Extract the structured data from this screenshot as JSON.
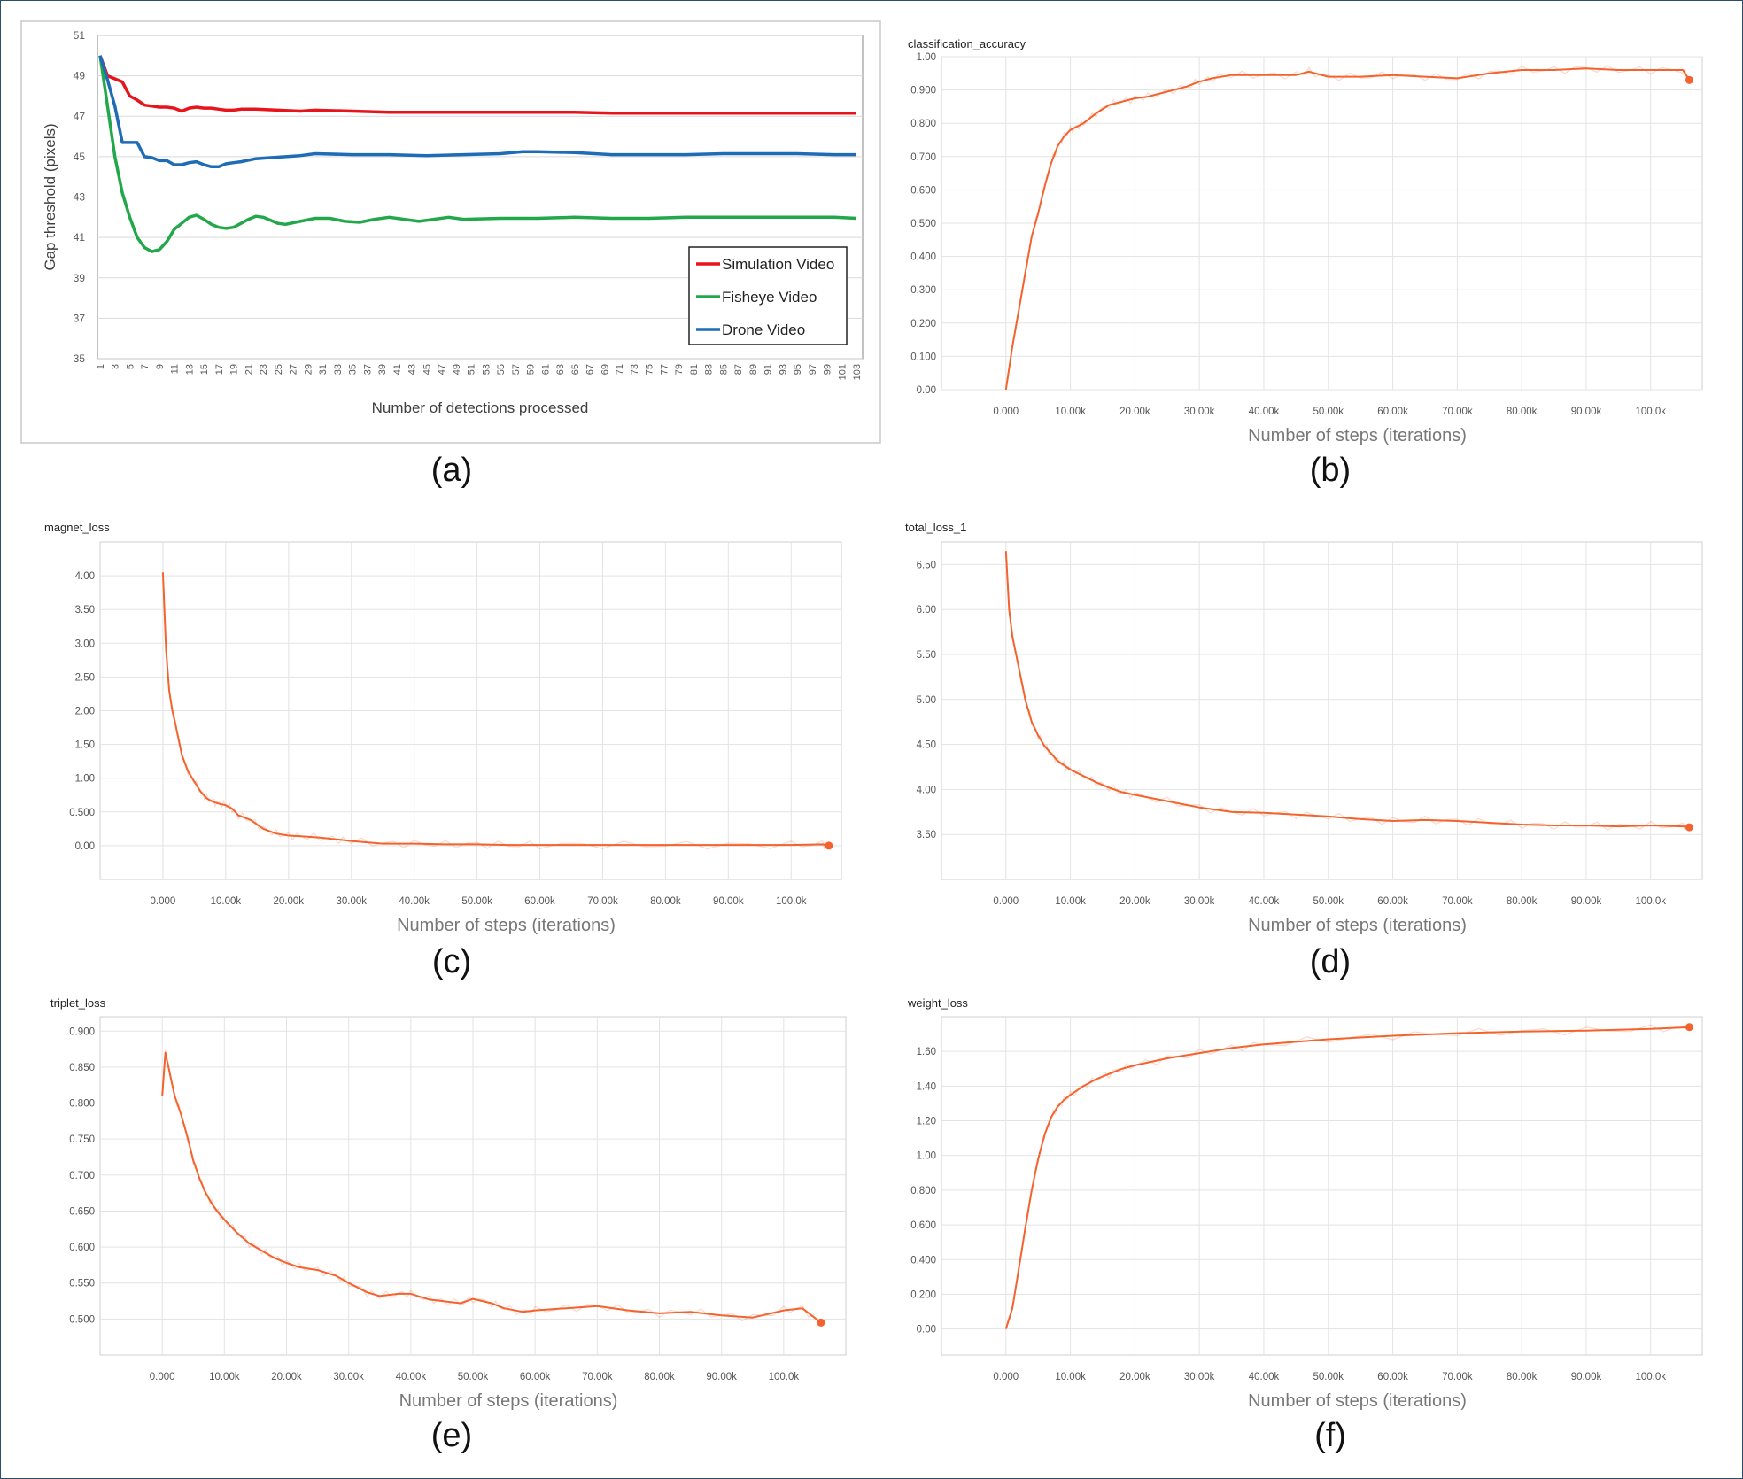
{
  "labels": {
    "a": "(a)",
    "b": "(b)",
    "c": "(c)",
    "d": "(d)",
    "e": "(e)",
    "f": "(f)"
  },
  "chart_data": [
    {
      "id": "a",
      "type": "line",
      "title": "",
      "xlabel": "Number of detections processed",
      "ylabel": "Gap threshold (pixels)",
      "ylim": [
        35,
        51
      ],
      "yticks": [
        35,
        37,
        39,
        41,
        43,
        45,
        47,
        49,
        51
      ],
      "x_tick_labels": [
        "1",
        "3",
        "5",
        "7",
        "9",
        "11",
        "13",
        "15",
        "17",
        "19",
        "21",
        "23",
        "25",
        "27",
        "29",
        "31",
        "33",
        "35",
        "37",
        "39",
        "41",
        "43",
        "45",
        "47",
        "49",
        "51",
        "53",
        "55",
        "57",
        "59",
        "61",
        "63",
        "65",
        "67",
        "69",
        "71",
        "73",
        "75",
        "77",
        "79",
        "81",
        "83",
        "85",
        "87",
        "89",
        "91",
        "93",
        "95",
        "97",
        "99",
        "101",
        "103"
      ],
      "grid": "horizontal",
      "legend": "bottom-right",
      "series": [
        {
          "name": "Simulation Video",
          "color": "#e8141b",
          "x": [
            1,
            2,
            3,
            4,
            5,
            6,
            7,
            8,
            9,
            10,
            11,
            12,
            13,
            14,
            15,
            16,
            17,
            18,
            19,
            20,
            22,
            25,
            28,
            30,
            35,
            40,
            45,
            50,
            55,
            60,
            65,
            70,
            75,
            80,
            85,
            90,
            95,
            100,
            103
          ],
          "y": [
            50,
            49.0,
            48.85,
            48.7,
            48.0,
            47.8,
            47.55,
            47.5,
            47.45,
            47.45,
            47.4,
            47.25,
            47.4,
            47.45,
            47.4,
            47.4,
            47.35,
            47.3,
            47.3,
            47.35,
            47.35,
            47.3,
            47.25,
            47.3,
            47.25,
            47.2,
            47.2,
            47.2,
            47.2,
            47.2,
            47.2,
            47.15,
            47.15,
            47.15,
            47.15,
            47.15,
            47.15,
            47.15,
            47.15
          ]
        },
        {
          "name": "Fisheye Video",
          "color": "#22a84a",
          "x": [
            1,
            2,
            3,
            4,
            5,
            6,
            7,
            8,
            9,
            10,
            11,
            12,
            13,
            14,
            15,
            16,
            17,
            18,
            19,
            20,
            21,
            22,
            23,
            24,
            25,
            26,
            28,
            30,
            32,
            34,
            36,
            38,
            40,
            42,
            44,
            46,
            48,
            50,
            55,
            60,
            65,
            70,
            75,
            80,
            85,
            90,
            95,
            100,
            103
          ],
          "y": [
            50,
            47.5,
            45.0,
            43.2,
            42.0,
            41.0,
            40.5,
            40.3,
            40.4,
            40.8,
            41.4,
            41.7,
            42.0,
            42.1,
            41.9,
            41.65,
            41.5,
            41.45,
            41.5,
            41.7,
            41.9,
            42.05,
            42.0,
            41.85,
            41.7,
            41.65,
            41.8,
            41.95,
            41.95,
            41.8,
            41.75,
            41.9,
            42.0,
            41.9,
            41.8,
            41.9,
            42.0,
            41.9,
            41.95,
            41.95,
            42.0,
            41.95,
            41.95,
            42.0,
            42.0,
            42.0,
            42.0,
            42.0,
            41.95
          ]
        },
        {
          "name": "Drone Video",
          "color": "#1f6cb6",
          "x": [
            1,
            2,
            3,
            4,
            5,
            6,
            7,
            8,
            9,
            10,
            11,
            12,
            13,
            14,
            15,
            16,
            17,
            18,
            19,
            20,
            22,
            24,
            26,
            28,
            30,
            35,
            40,
            45,
            50,
            55,
            58,
            60,
            65,
            70,
            75,
            80,
            85,
            90,
            95,
            100,
            103
          ],
          "y": [
            50,
            48.8,
            47.5,
            45.7,
            45.7,
            45.7,
            45.0,
            44.95,
            44.8,
            44.8,
            44.6,
            44.6,
            44.7,
            44.75,
            44.6,
            44.5,
            44.5,
            44.65,
            44.7,
            44.75,
            44.9,
            44.95,
            45.0,
            45.05,
            45.15,
            45.1,
            45.1,
            45.05,
            45.1,
            45.15,
            45.25,
            45.25,
            45.2,
            45.1,
            45.1,
            45.1,
            45.15,
            45.15,
            45.15,
            45.1,
            45.1
          ]
        }
      ]
    },
    {
      "id": "b",
      "type": "line",
      "title": "classification_accuracy",
      "xlabel": "Number of steps (iterations)",
      "ylabel": "",
      "ylim": [
        0,
        1
      ],
      "yticks": [
        0,
        0.1,
        0.2,
        0.3,
        0.4,
        0.5,
        0.6,
        0.7,
        0.8,
        0.9,
        1.0
      ],
      "ytick_labels": [
        "0.00",
        "0.100",
        "0.200",
        "0.300",
        "0.400",
        "0.500",
        "0.600",
        "0.700",
        "0.800",
        "0.900",
        "1.00"
      ],
      "xticks": [
        0,
        10000,
        20000,
        30000,
        40000,
        50000,
        60000,
        70000,
        80000,
        90000,
        100000
      ],
      "xtick_labels": [
        "0.000",
        "10.00k",
        "20.00k",
        "30.00k",
        "40.00k",
        "50.00k",
        "60.00k",
        "70.00k",
        "80.00k",
        "90.00k",
        "100.0k"
      ],
      "xlim": [
        -10000,
        108000
      ],
      "grid": "both",
      "color": "#f4622d",
      "x": [
        0,
        1000,
        2000,
        3000,
        4000,
        5000,
        6000,
        7000,
        8000,
        9000,
        10000,
        11000,
        12000,
        14000,
        16000,
        18000,
        20000,
        22000,
        25000,
        28000,
        30000,
        32000,
        35000,
        40000,
        45000,
        47000,
        50000,
        55000,
        60000,
        65000,
        70000,
        75000,
        80000,
        85000,
        90000,
        95000,
        100000,
        105000,
        106000
      ],
      "y": [
        0.0,
        0.13,
        0.24,
        0.35,
        0.46,
        0.53,
        0.61,
        0.68,
        0.73,
        0.76,
        0.78,
        0.79,
        0.8,
        0.83,
        0.855,
        0.865,
        0.875,
        0.88,
        0.895,
        0.91,
        0.925,
        0.935,
        0.945,
        0.945,
        0.945,
        0.955,
        0.94,
        0.94,
        0.945,
        0.94,
        0.935,
        0.95,
        0.96,
        0.96,
        0.965,
        0.96,
        0.96,
        0.96,
        0.93
      ]
    },
    {
      "id": "c",
      "type": "line",
      "title": "magnet_loss",
      "xlabel": "Number of steps (iterations)",
      "ylabel": "",
      "ylim": [
        -0.5,
        4.5
      ],
      "yticks": [
        0,
        0.5,
        1.0,
        1.5,
        2.0,
        2.5,
        3.0,
        3.5,
        4.0
      ],
      "ytick_labels": [
        "0.00",
        "0.500",
        "1.00",
        "1.50",
        "2.00",
        "2.50",
        "3.00",
        "3.50",
        "4.00"
      ],
      "xticks": [
        0,
        10000,
        20000,
        30000,
        40000,
        50000,
        60000,
        70000,
        80000,
        90000,
        100000
      ],
      "xtick_labels": [
        "0.000",
        "10.00k",
        "20.00k",
        "30.00k",
        "40.00k",
        "50.00k",
        "60.00k",
        "70.00k",
        "80.00k",
        "90.00k",
        "100.0k"
      ],
      "xlim": [
        -10000,
        108000
      ],
      "grid": "both",
      "color": "#f4622d",
      "x": [
        0,
        500,
        1000,
        1500,
        2000,
        3000,
        4000,
        5000,
        6000,
        7000,
        8000,
        9000,
        10000,
        11000,
        12000,
        14000,
        16000,
        18000,
        20000,
        22000,
        25000,
        28000,
        30000,
        35000,
        40000,
        45000,
        50000,
        55000,
        60000,
        70000,
        80000,
        90000,
        100000,
        105000,
        106000
      ],
      "y": [
        4.05,
        2.9,
        2.3,
        2.0,
        1.8,
        1.35,
        1.1,
        0.95,
        0.8,
        0.7,
        0.65,
        0.62,
        0.6,
        0.55,
        0.45,
        0.38,
        0.25,
        0.18,
        0.15,
        0.14,
        0.12,
        0.09,
        0.07,
        0.03,
        0.03,
        0.02,
        0.02,
        0.01,
        0.01,
        0.01,
        0.01,
        0.01,
        0.01,
        0.02,
        0.0
      ]
    },
    {
      "id": "d",
      "type": "line",
      "title": "total_loss_1",
      "xlabel": "Number of steps (iterations)",
      "ylabel": "",
      "ylim": [
        3.0,
        6.75
      ],
      "yticks": [
        3.5,
        4.0,
        4.5,
        5.0,
        5.5,
        6.0,
        6.5
      ],
      "ytick_labels": [
        "3.50",
        "4.00",
        "4.50",
        "5.00",
        "5.50",
        "6.00",
        "6.50"
      ],
      "xticks": [
        0,
        10000,
        20000,
        30000,
        40000,
        50000,
        60000,
        70000,
        80000,
        90000,
        100000
      ],
      "xtick_labels": [
        "0.000",
        "10.00k",
        "20.00k",
        "30.00k",
        "40.00k",
        "50.00k",
        "60.00k",
        "70.00k",
        "80.00k",
        "90.00k",
        "100.0k"
      ],
      "xlim": [
        -10000,
        108000
      ],
      "grid": "both",
      "color": "#f4622d",
      "x": [
        0,
        500,
        1000,
        2000,
        3000,
        4000,
        5000,
        6000,
        7000,
        8000,
        9000,
        10000,
        12000,
        14000,
        16000,
        18000,
        20000,
        25000,
        30000,
        35000,
        40000,
        45000,
        50000,
        55000,
        60000,
        65000,
        70000,
        75000,
        80000,
        85000,
        90000,
        95000,
        100000,
        105000,
        106000
      ],
      "y": [
        6.65,
        6.0,
        5.7,
        5.35,
        5.0,
        4.75,
        4.6,
        4.48,
        4.4,
        4.32,
        4.27,
        4.22,
        4.15,
        4.08,
        4.02,
        3.97,
        3.94,
        3.87,
        3.8,
        3.75,
        3.74,
        3.72,
        3.7,
        3.67,
        3.65,
        3.66,
        3.65,
        3.63,
        3.61,
        3.6,
        3.6,
        3.59,
        3.6,
        3.59,
        3.58
      ]
    },
    {
      "id": "e",
      "type": "line",
      "title": "triplet_loss",
      "xlabel": "Number of steps (iterations)",
      "ylabel": "",
      "ylim": [
        0.45,
        0.92
      ],
      "yticks": [
        0.5,
        0.55,
        0.6,
        0.65,
        0.7,
        0.75,
        0.8,
        0.85,
        0.9
      ],
      "ytick_labels": [
        "0.500",
        "0.550",
        "0.600",
        "0.650",
        "0.700",
        "0.750",
        "0.800",
        "0.850",
        "0.900"
      ],
      "xticks": [
        0,
        10000,
        20000,
        30000,
        40000,
        50000,
        60000,
        70000,
        80000,
        90000,
        100000
      ],
      "xtick_labels": [
        "0.000",
        "10.00k",
        "20.00k",
        "30.00k",
        "40.00k",
        "50.00k",
        "60.00k",
        "70.00k",
        "80.00k",
        "90.00k",
        "100.0k"
      ],
      "xlim": [
        -10000,
        110000
      ],
      "grid": "both",
      "color": "#f4622d",
      "x": [
        0,
        500,
        1000,
        2000,
        3000,
        4000,
        5000,
        6000,
        7000,
        8000,
        9000,
        10000,
        12000,
        14000,
        16000,
        18000,
        20000,
        22000,
        25000,
        28000,
        30000,
        33000,
        35000,
        38000,
        40000,
        43000,
        45000,
        48000,
        50000,
        53000,
        55000,
        58000,
        60000,
        65000,
        70000,
        75000,
        80000,
        85000,
        90000,
        95000,
        100000,
        103000,
        106000
      ],
      "y": [
        0.81,
        0.87,
        0.85,
        0.81,
        0.785,
        0.755,
        0.72,
        0.695,
        0.675,
        0.66,
        0.648,
        0.638,
        0.62,
        0.605,
        0.595,
        0.585,
        0.578,
        0.572,
        0.568,
        0.56,
        0.55,
        0.537,
        0.532,
        0.535,
        0.535,
        0.527,
        0.525,
        0.522,
        0.528,
        0.522,
        0.515,
        0.51,
        0.512,
        0.515,
        0.518,
        0.512,
        0.508,
        0.51,
        0.505,
        0.502,
        0.512,
        0.515,
        0.495
      ]
    },
    {
      "id": "f",
      "type": "line",
      "title": "weight_loss",
      "xlabel": "Number of steps (iterations)",
      "ylabel": "",
      "ylim": [
        -0.15,
        1.8
      ],
      "yticks": [
        0,
        0.2,
        0.4,
        0.6,
        0.8,
        1.0,
        1.2,
        1.4,
        1.6
      ],
      "ytick_labels": [
        "0.00",
        "0.200",
        "0.400",
        "0.600",
        "0.800",
        "1.00",
        "1.20",
        "1.40",
        "1.60"
      ],
      "xticks": [
        0,
        10000,
        20000,
        30000,
        40000,
        50000,
        60000,
        70000,
        80000,
        90000,
        100000
      ],
      "xtick_labels": [
        "0.000",
        "10.00k",
        "20.00k",
        "30.00k",
        "40.00k",
        "50.00k",
        "60.00k",
        "70.00k",
        "80.00k",
        "90.00k",
        "100.0k"
      ],
      "xlim": [
        -10000,
        108000
      ],
      "grid": "both",
      "color": "#f4622d",
      "x": [
        0,
        1000,
        2000,
        3000,
        4000,
        5000,
        6000,
        7000,
        8000,
        9000,
        10000,
        12000,
        14000,
        16000,
        18000,
        20000,
        25000,
        30000,
        35000,
        40000,
        50000,
        60000,
        70000,
        80000,
        90000,
        100000,
        106000
      ],
      "y": [
        0.0,
        0.12,
        0.35,
        0.58,
        0.8,
        0.98,
        1.12,
        1.22,
        1.28,
        1.32,
        1.35,
        1.4,
        1.44,
        1.47,
        1.5,
        1.52,
        1.56,
        1.59,
        1.62,
        1.64,
        1.67,
        1.69,
        1.705,
        1.715,
        1.72,
        1.73,
        1.74
      ]
    }
  ]
}
